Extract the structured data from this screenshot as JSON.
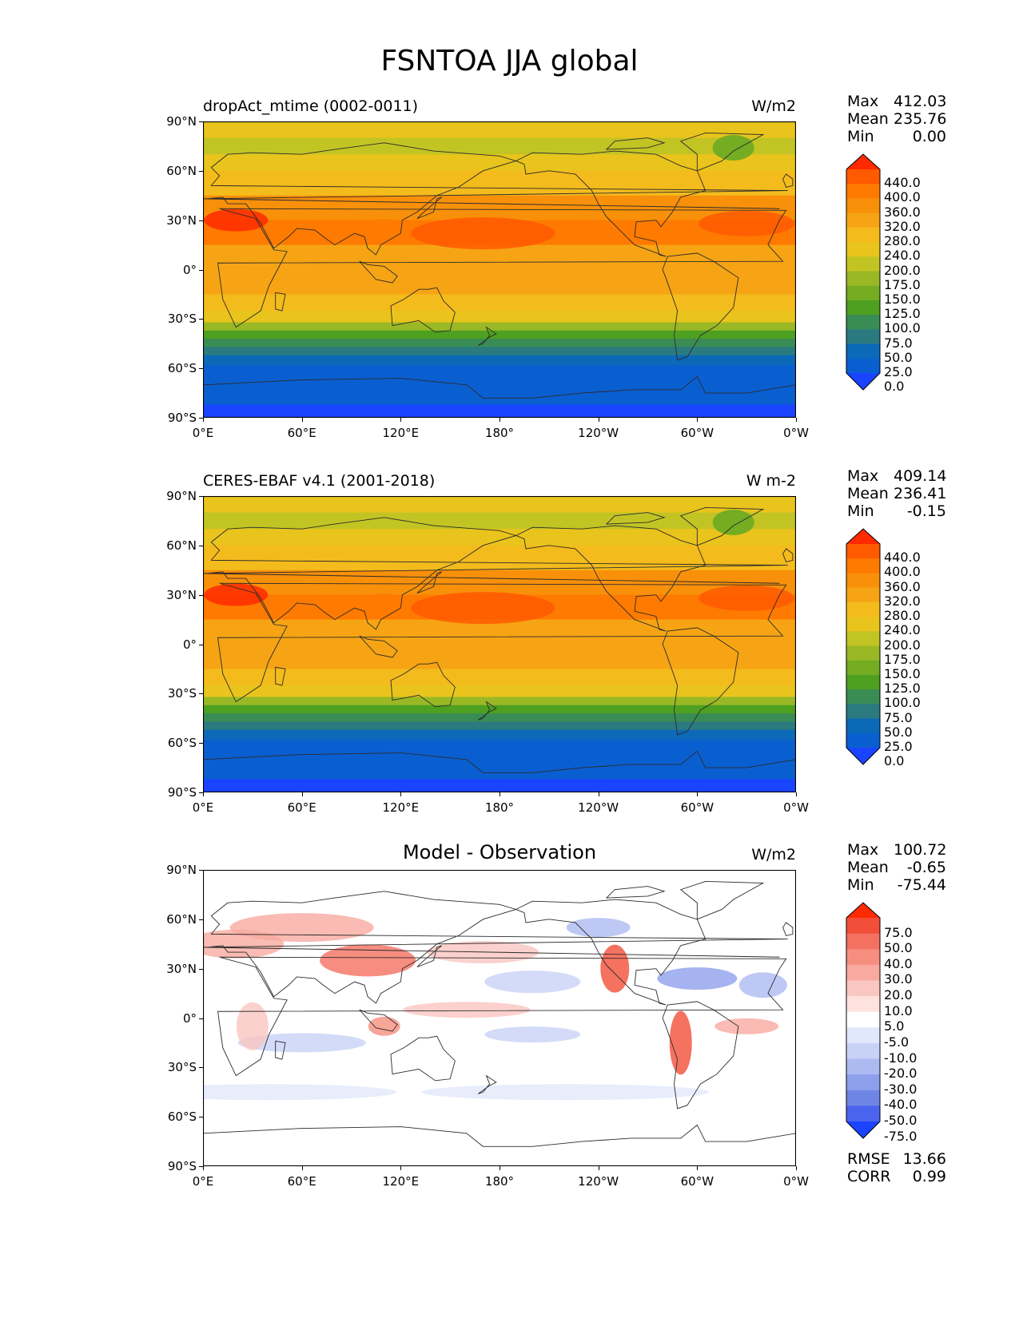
{
  "title": "FSNTOA JJA global",
  "axes": {
    "lat_ticks": [
      "90°N",
      "60°N",
      "30°N",
      "0°",
      "30°S",
      "60°S",
      "90°S"
    ],
    "lon_ticks": [
      "0°E",
      "60°E",
      "120°E",
      "180°",
      "120°W",
      "60°W",
      "0°W"
    ]
  },
  "panels": [
    {
      "left_title": "dropAct_mtime (0002-0011)",
      "center_title": "",
      "units": "W/m2",
      "stats": {
        "max_label": "Max",
        "max": "412.03",
        "mean_label": "Mean",
        "mean": "235.76",
        "min_label": "Min",
        "min": "0.00"
      },
      "colorbar": {
        "labels": [
          "440.0",
          "400.0",
          "360.0",
          "320.0",
          "280.0",
          "240.0",
          "200.0",
          "175.0",
          "150.0",
          "125.0",
          "100.0",
          "75.0",
          "50.0",
          "25.0",
          "0.0"
        ],
        "colors": [
          "#ff2a00",
          "#ff5a00",
          "#ff7a00",
          "#f8900a",
          "#f6a414",
          "#f4bb1c",
          "#e9c41c",
          "#c2c424",
          "#9ab825",
          "#74ac22",
          "#4ea020",
          "#3a8c55",
          "#2a7a80",
          "#0b69b8",
          "#0a5fd0",
          "#1a44ff"
        ]
      }
    },
    {
      "left_title": "CERES-EBAF v4.1 (2001-2018)",
      "center_title": "",
      "units": "W m-2",
      "stats": {
        "max_label": "Max",
        "max": "409.14",
        "mean_label": "Mean",
        "mean": "236.41",
        "min_label": "Min",
        "min": "-0.15"
      },
      "colorbar": {
        "labels": [
          "440.0",
          "400.0",
          "360.0",
          "320.0",
          "280.0",
          "240.0",
          "200.0",
          "175.0",
          "150.0",
          "125.0",
          "100.0",
          "75.0",
          "50.0",
          "25.0",
          "0.0"
        ],
        "colors": [
          "#ff2a00",
          "#ff5a00",
          "#ff7a00",
          "#f8900a",
          "#f6a414",
          "#f4bb1c",
          "#e9c41c",
          "#c2c424",
          "#9ab825",
          "#74ac22",
          "#4ea020",
          "#3a8c55",
          "#2a7a80",
          "#0b69b8",
          "#0a5fd0",
          "#1a44ff"
        ]
      }
    },
    {
      "left_title": "",
      "center_title": "Model - Observation",
      "units": "W/m2",
      "stats": {
        "max_label": "Max",
        "max": "100.72",
        "mean_label": "Mean",
        "mean": "-0.65",
        "min_label": "Min",
        "min": "-75.44"
      },
      "extra_stats": {
        "rmse_label": "RMSE",
        "rmse": "13.66",
        "corr_label": "CORR",
        "corr": "0.99"
      },
      "colorbar": {
        "labels": [
          "75.0",
          "50.0",
          "40.0",
          "30.0",
          "20.0",
          "10.0",
          "5.0",
          "-5.0",
          "-10.0",
          "-20.0",
          "-30.0",
          "-40.0",
          "-50.0",
          "-75.0"
        ],
        "colors": [
          "#ff2a00",
          "#f24f3a",
          "#f47060",
          "#f68e80",
          "#f8aaa0",
          "#fac6c0",
          "#fde2de",
          "#ffffff",
          "#e2e8fb",
          "#c8d2f7",
          "#acbaf2",
          "#8ea0ec",
          "#6f85e6",
          "#4b64ee",
          "#1a44ff"
        ]
      }
    }
  ],
  "colors": {
    "landline": "#2b2b2b",
    "frame": "#000000"
  }
}
